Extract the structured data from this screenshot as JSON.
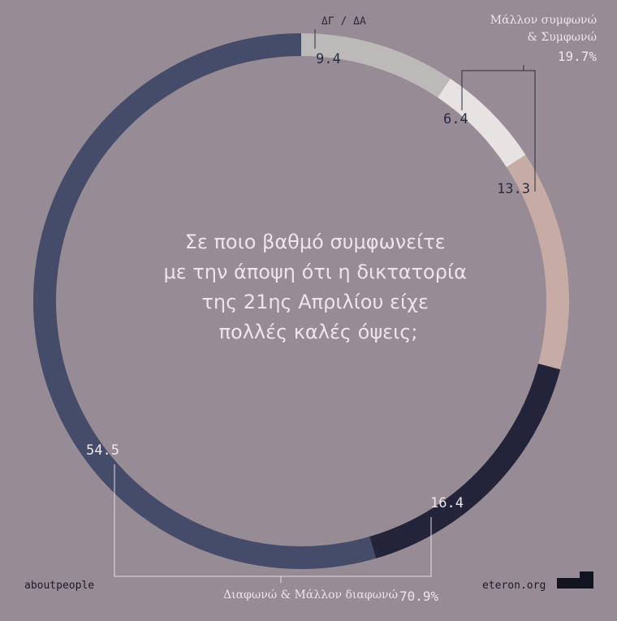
{
  "chart_data": {
    "type": "donut",
    "title": "Σε ποιο βαθμό συμφωνείτε με την άποψη ότι η δικτατορία της 21ης Απριλίου είχε πολλές καλές όψεις;",
    "title_lines": [
      "Σε ποιο βαθμό συμφωνείτε",
      "με την άποψη ότι η δικτατορία",
      "της 21ης Απριλίου είχε",
      "πολλές καλές όψεις;"
    ],
    "slices": [
      {
        "label": "9.4",
        "value": 9.4,
        "category": "ΔΓ / ΔΑ",
        "color": "#bcbab9",
        "label_color": "#2a2c3f"
      },
      {
        "label": "6.4",
        "value": 6.4,
        "color": "#e6e3e2",
        "label_color": "#2a2c3f"
      },
      {
        "label": "13.3",
        "value": 13.3,
        "color": "#c6aca5",
        "label_color": "#2a2c3f"
      },
      {
        "label": "16.4",
        "value": 16.4,
        "color": "#232339",
        "label_color": "#ece6ea"
      },
      {
        "label": "54.5",
        "value": 54.5,
        "color": "#454c6a",
        "label_color": "#ece6ea"
      }
    ],
    "groups": {
      "agree": {
        "label_line1": "Μάλλον συμφωνώ",
        "label_line2": "& Συμφωνώ",
        "pct": "19.7%"
      },
      "disagree": {
        "label": "Διαφωνώ & Μάλλον διαφωνώ",
        "pct": "70.9%"
      }
    },
    "start_angle_deg": 0,
    "direction": "clockwise"
  },
  "footer": {
    "left": "aboutpeople",
    "right": "eteron.org"
  },
  "colors": {
    "background": "#978b95",
    "bracket_agree": "#2a2c3f",
    "bracket_disagree": "#e4dde2",
    "logo": "#141320"
  },
  "icons": {
    "logo": "eteron-logo-icon"
  }
}
